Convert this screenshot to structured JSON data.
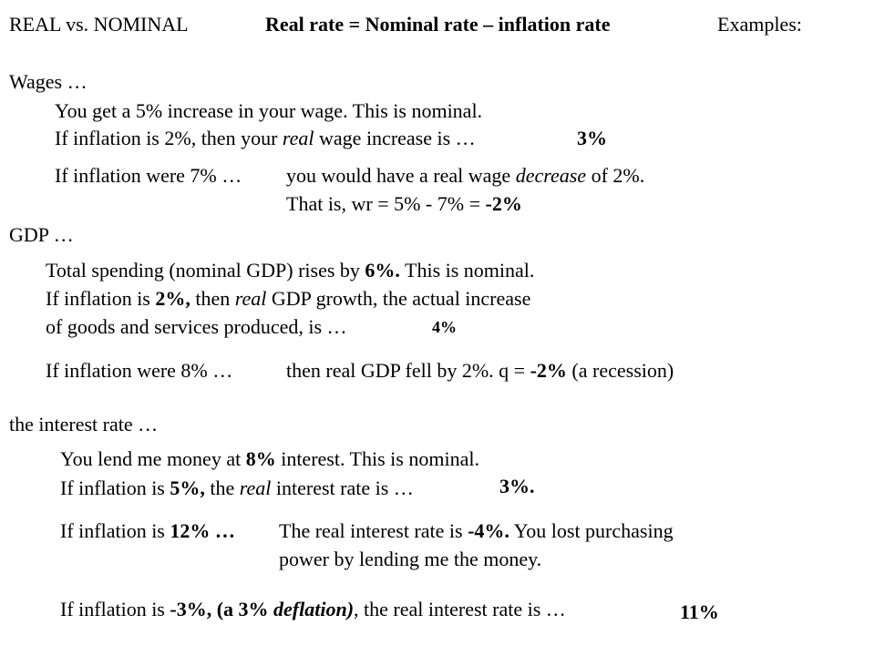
{
  "header": {
    "title": "REAL vs. NOMINAL",
    "formula": "Real rate = Nominal rate – inflation rate",
    "examples": "Examples:"
  },
  "wages": {
    "heading": "Wages …",
    "line1": "You get a 5% increase in your wage. This is nominal.",
    "line2_a": "If inflation is 2%, then your ",
    "line2_real": "real",
    "line2_b": " wage increase is …",
    "answer1": "3%",
    "line3_lead": "If inflation were 7% …",
    "line3_a": "you would have a real wage ",
    "line3_decrease": "decrease",
    "line3_b": " of 2%.",
    "line4_a": "That is, wr = 5% - 7% = ",
    "line4_ans": "-2%"
  },
  "gdp": {
    "heading": "GDP …",
    "line1_a": "Total spending (nominal GDP) rises by ",
    "line1_ans": "6%.",
    "line1_b": " This is nominal.",
    "line2_a": "If inflation is ",
    "line2_ans": "2%,",
    "line2_b": " then ",
    "line2_real": "real",
    "line2_c": " GDP growth, the actual increase",
    "line3": "of goods and services produced, is …",
    "answer": "4%",
    "line4_lead": "If inflation were 8% …",
    "line4_a": "then real GDP fell by 2%. q = ",
    "line4_ans": "-2%",
    "line4_b": " (a recession)"
  },
  "interest": {
    "heading": "the interest rate …",
    "line1_a": "You lend me money at ",
    "line1_ans": "8%",
    "line1_b": " interest. This is nominal.",
    "line2_a": "If inflation is ",
    "line2_ans": "5%,",
    "line2_b": " the ",
    "line2_real": "real",
    "line2_c": " interest rate is …",
    "answer": "3%.",
    "line3_a": "If inflation is ",
    "line3_ans": "12% …",
    "line3_b": "The real interest rate is ",
    "line3_ans2": "-4%.",
    "line3_c": " You lost purchasing",
    "line4": "power by lending me the money.",
    "line5_a": "If inflation is ",
    "line5_ans": "-3%, (a 3% ",
    "line5_deflation": "deflation)",
    "line5_b": ", the real interest rate is …",
    "answer2": "11%"
  }
}
